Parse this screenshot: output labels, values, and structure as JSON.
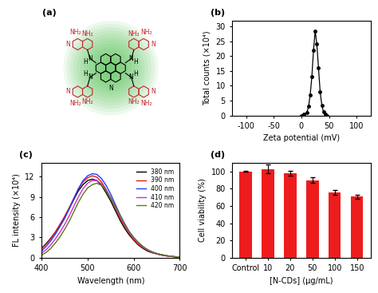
{
  "chart_data": [
    {
      "type": "structure",
      "title": "(a)",
      "labels": [
        "N",
        "N",
        "N",
        "N",
        "N",
        "H",
        "H",
        "H",
        "H",
        "N",
        "N",
        "N",
        "N",
        "NH₂",
        "NH₂",
        "NH₂",
        "NH₂",
        "NH₂",
        "NH₂",
        "NH₂",
        "NH₂"
      ],
      "colors": [
        "#000000",
        "#000000",
        "#000000",
        "#000000",
        "#000000",
        "#000000",
        "#000000",
        "#000000",
        "#000000",
        "#c0282d",
        "#c0282d",
        "#c0282d",
        "#c0282d",
        "#c0282d",
        "#c0282d",
        "#c0282d",
        "#c0282d",
        "#c0282d",
        "#c0282d",
        "#c0282d",
        "#c0282d"
      ]
    },
    {
      "type": "line",
      "title": "(b)",
      "x_label": "Zeta potential (mV)",
      "y_label": "Total counts (×10⁴)",
      "x": [
        0,
        5,
        10,
        13,
        16,
        19,
        22,
        25,
        28,
        31,
        34,
        37,
        40,
        43,
        46
      ],
      "values": [
        0,
        0.3,
        1,
        3,
        7,
        13,
        22,
        28.5,
        24,
        16,
        8,
        3.5,
        1.2,
        0.3,
        0
      ],
      "color": "#000000",
      "marker": "o",
      "xlim": [
        -125,
        125
      ],
      "xticks": [
        -100,
        -50,
        0,
        50,
        100
      ],
      "ylim": [
        0,
        32
      ],
      "yticks": [
        0,
        5,
        10,
        15,
        20,
        25,
        30
      ]
    },
    {
      "type": "line",
      "title": "(c)",
      "x_label": "Wavelength (nm)",
      "y_label": "FL intensity (×10⁴)",
      "x": [
        400,
        410,
        420,
        430,
        440,
        450,
        460,
        470,
        480,
        490,
        500,
        510,
        520,
        530,
        540,
        550,
        560,
        570,
        580,
        590,
        600,
        610,
        620,
        630,
        640,
        650,
        660,
        670,
        680,
        690,
        700
      ],
      "series": [
        {
          "name": "380 nm",
          "color": "#000000",
          "values": [
            1.4,
            2.1,
            2.9,
            3.8,
            4.9,
            6.0,
            7.3,
            8.6,
            9.9,
            10.8,
            11.4,
            11.6,
            11.4,
            10.7,
            9.6,
            8.4,
            7.0,
            5.6,
            4.4,
            3.4,
            2.6,
            1.9,
            1.4,
            1.0,
            0.75,
            0.58,
            0.41,
            0.29,
            0.21,
            0.14,
            0.09
          ]
        },
        {
          "name": "390 nm",
          "color": "#e31a1c",
          "values": [
            1.3,
            2.0,
            2.8,
            3.8,
            4.9,
            6.1,
            7.4,
            8.8,
            10.2,
            11.2,
            11.8,
            12.1,
            11.9,
            11.2,
            10.1,
            8.8,
            7.4,
            5.9,
            4.7,
            3.6,
            2.7,
            2.0,
            1.5,
            1.1,
            0.8,
            0.6,
            0.43,
            0.3,
            0.22,
            0.15,
            0.1
          ]
        },
        {
          "name": "400 nm",
          "color": "#1f3cff",
          "values": [
            1.0,
            1.7,
            2.5,
            3.5,
            4.6,
            5.8,
            7.2,
            8.7,
            10.2,
            11.4,
            12.1,
            12.4,
            12.3,
            11.7,
            10.7,
            9.4,
            7.9,
            6.4,
            5.1,
            3.9,
            3.0,
            2.2,
            1.6,
            1.2,
            0.85,
            0.63,
            0.46,
            0.33,
            0.23,
            0.16,
            0.1
          ]
        },
        {
          "name": "410 nm",
          "color": "#d42ad4",
          "values": [
            0.7,
            1.2,
            1.9,
            2.8,
            3.8,
            4.9,
            6.2,
            7.6,
            9.0,
            10.2,
            11.0,
            11.4,
            11.4,
            10.9,
            10.0,
            8.9,
            7.6,
            6.2,
            4.9,
            3.8,
            2.9,
            2.2,
            1.6,
            1.2,
            0.85,
            0.63,
            0.46,
            0.33,
            0.23,
            0.16,
            0.1
          ]
        },
        {
          "name": "420 nm",
          "color": "#5a7a1e",
          "values": [
            0.4,
            0.8,
            1.4,
            2.2,
            3.1,
            4.2,
            5.4,
            6.8,
            8.2,
            9.4,
            10.3,
            10.8,
            11.0,
            10.7,
            9.9,
            8.8,
            7.6,
            6.3,
            5.0,
            3.9,
            3.0,
            2.3,
            1.7,
            1.2,
            0.9,
            0.65,
            0.48,
            0.34,
            0.24,
            0.17,
            0.11
          ]
        }
      ],
      "legend": "upper right",
      "xlim": [
        400,
        700
      ],
      "xticks": [
        400,
        500,
        600,
        700
      ],
      "ylim": [
        0,
        14
      ],
      "yticks": [
        0,
        3,
        6,
        9,
        12
      ]
    },
    {
      "type": "bar",
      "title": "(d)",
      "x_label": "[N-CDs] (μg/mL)",
      "y_label": "Cell viability (%)",
      "categories": [
        "Control",
        "10",
        "20",
        "50",
        "100",
        "150"
      ],
      "values": [
        100,
        103,
        98,
        90,
        76,
        71
      ],
      "errors": [
        0.5,
        5,
        2.5,
        3.5,
        2.5,
        2.5
      ],
      "color": "#ee1c1c",
      "ylim": [
        0,
        110
      ],
      "yticks": [
        0,
        20,
        40,
        60,
        80,
        100
      ]
    }
  ]
}
